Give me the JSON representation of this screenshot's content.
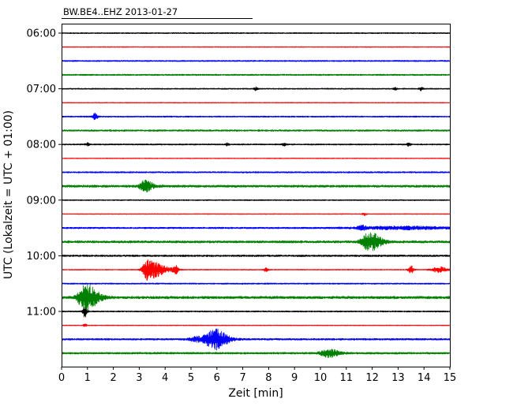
{
  "figure": {
    "title": "BW.BE4..EHZ 2013-01-27",
    "xlabel": "Zeit [min]",
    "ylabel": "UTC (Lokalzeit = UTC + 01:00)"
  },
  "chart_data": {
    "type": "line",
    "subtype": "seismogram-helicorder-dayplot",
    "title": "BW.BE4..EHZ 2013-01-27",
    "xlabel": "Zeit [min]",
    "ylabel": "UTC (Lokalzeit = UTC + 01:00)",
    "xlim": [
      0,
      15
    ],
    "x_ticks": [
      0,
      1,
      2,
      3,
      4,
      5,
      6,
      7,
      8,
      9,
      10,
      11,
      12,
      13,
      14,
      15
    ],
    "y_tick_labels": [
      "06:00",
      "07:00",
      "08:00",
      "09:00",
      "10:00",
      "11:00"
    ],
    "minutes_per_trace": 15,
    "color_cycle": [
      "#000000",
      "#ff0000",
      "#0000ff",
      "#008000"
    ],
    "traces": [
      {
        "start": "06:00",
        "noise": 0.7,
        "events": []
      },
      {
        "start": "06:15",
        "noise": 0.5,
        "events": []
      },
      {
        "start": "06:30",
        "noise": 0.8,
        "events": []
      },
      {
        "start": "06:45",
        "noise": 0.9,
        "events": []
      },
      {
        "start": "07:00",
        "noise": 0.7,
        "events": [
          {
            "x": 7.5,
            "amp": 2,
            "w": 0.05
          },
          {
            "x": 12.9,
            "amp": 1.6,
            "w": 0.05
          },
          {
            "x": 13.9,
            "amp": 2,
            "w": 0.06
          }
        ]
      },
      {
        "start": "07:15",
        "noise": 0.5,
        "events": []
      },
      {
        "start": "07:30",
        "noise": 0.8,
        "events": [
          {
            "x": 1.3,
            "amp": 4,
            "w": 0.07
          }
        ]
      },
      {
        "start": "07:45",
        "noise": 1.0,
        "events": []
      },
      {
        "start": "08:00",
        "noise": 0.8,
        "events": [
          {
            "x": 1.0,
            "amp": 2,
            "w": 0.06
          },
          {
            "x": 6.4,
            "amp": 1.6,
            "w": 0.05
          },
          {
            "x": 8.6,
            "amp": 1.6,
            "w": 0.05
          },
          {
            "x": 13.4,
            "amp": 2,
            "w": 0.06
          }
        ]
      },
      {
        "start": "08:15",
        "noise": 0.5,
        "events": []
      },
      {
        "start": "08:30",
        "noise": 0.9,
        "events": []
      },
      {
        "start": "08:45",
        "noise": 1.4,
        "events": [
          {
            "x": 3.2,
            "amp": 7,
            "w": 0.12,
            "coda": 2
          }
        ]
      },
      {
        "start": "09:00",
        "noise": 0.7,
        "events": []
      },
      {
        "start": "09:15",
        "noise": 0.5,
        "events": [
          {
            "x": 11.7,
            "amp": 1.8,
            "w": 0.05
          }
        ]
      },
      {
        "start": "09:30",
        "noise": 1.0,
        "events": [
          {
            "x": 11.6,
            "amp": 2.5,
            "w": 0.12
          },
          {
            "x": 13.2,
            "amp": 1.8,
            "w": 1.2
          }
        ]
      },
      {
        "start": "09:45",
        "noise": 1.4,
        "events": [
          {
            "x": 11.9,
            "amp": 12,
            "w": 0.2,
            "coda": 1.6
          }
        ]
      },
      {
        "start": "10:00",
        "noise": 1.1,
        "events": []
      },
      {
        "start": "10:15",
        "noise": 0.6,
        "events": [
          {
            "x": 3.3,
            "amp": 13,
            "w": 0.12,
            "coda": 4
          },
          {
            "x": 4.4,
            "amp": 6,
            "w": 0.07
          },
          {
            "x": 7.9,
            "amp": 2.5,
            "w": 0.06
          },
          {
            "x": 13.5,
            "amp": 5,
            "w": 0.07
          },
          {
            "x": 14.6,
            "amp": 3.5,
            "w": 0.2
          }
        ]
      },
      {
        "start": "10:30",
        "noise": 0.8,
        "events": []
      },
      {
        "start": "10:45",
        "noise": 1.6,
        "events": [
          {
            "x": 0.9,
            "amp": 17,
            "w": 0.18,
            "coda": 2
          }
        ]
      },
      {
        "start": "11:00",
        "noise": 0.8,
        "events": [
          {
            "x": 0.9,
            "amp": 8,
            "w": 0.06
          }
        ]
      },
      {
        "start": "11:15",
        "noise": 0.5,
        "events": [
          {
            "x": 0.9,
            "amp": 2,
            "w": 0.05
          }
        ]
      },
      {
        "start": "11:30",
        "noise": 1.1,
        "events": [
          {
            "x": 5.9,
            "amp": 13,
            "w": 0.25,
            "coda": 1.5
          },
          {
            "x": 5.2,
            "amp": 3,
            "w": 0.2
          }
        ]
      },
      {
        "start": "11:45",
        "noise": 1.2,
        "events": [
          {
            "x": 10.3,
            "amp": 5,
            "w": 0.2,
            "coda": 1.5
          }
        ]
      }
    ]
  }
}
